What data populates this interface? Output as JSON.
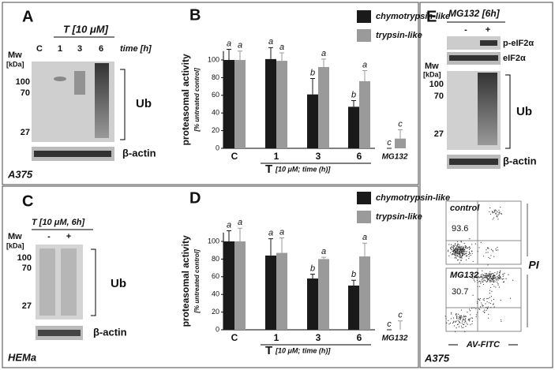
{
  "panels": {
    "A": {
      "letter": "A",
      "treatment": "T [10 μM]",
      "time": "time [h]",
      "mw": "Mw",
      "kda": "[kDa]",
      "lanes": [
        "C",
        "1",
        "3",
        "6"
      ],
      "markers": [
        100,
        70,
        27
      ],
      "ub": "Ub",
      "actin": "β-actin",
      "cell": "A375"
    },
    "C": {
      "letter": "C",
      "treatment": "T [10 μM, 6h]",
      "mw": "Mw",
      "kda": "[kDa]",
      "lanes": [
        "-",
        "+"
      ],
      "markers": [
        100,
        70,
        27
      ],
      "ub": "Ub",
      "actin": "β-actin",
      "cell": "HEMa"
    },
    "E": {
      "letter": "E",
      "treatment": "MG132 [6h]",
      "lanes": [
        "-",
        "+"
      ],
      "peif": "p-eIF2α",
      "eif": "eIF2α",
      "mw": "Mw",
      "kda": "[kDa]",
      "markers": [
        100,
        70,
        27
      ],
      "ub": "Ub",
      "actin": "β-actin",
      "flow": [
        {
          "label": "control",
          "percent": 93.6
        },
        {
          "label": "MG132",
          "percent": 30.7
        }
      ],
      "y_axis": "PI",
      "x_axis": "AV-FITC",
      "cell": "A375"
    }
  },
  "chart_data": [
    {
      "type": "bar",
      "panel": "B",
      "ylabel": "proteasomal activity",
      "ylabel_note": "[% untreated control]",
      "categories": [
        "C",
        "1",
        "3",
        "6",
        "MG132"
      ],
      "xlabel": "T",
      "xlabel_note": "[10 μM; time (h)]",
      "ylim": [
        0,
        110
      ],
      "yticks": [
        0,
        20,
        40,
        60,
        80,
        100
      ],
      "series": [
        {
          "name": "chymotrypsin-like",
          "color": "#1a1a1a",
          "values": [
            100,
            101,
            61,
            47,
            0
          ],
          "errors": [
            12,
            13,
            18,
            7,
            0
          ],
          "significance": [
            "a",
            "a",
            "b",
            "b",
            "c"
          ]
        },
        {
          "name": "trypsin-like",
          "color": "#9a9a9a",
          "values": [
            100,
            99,
            92,
            76,
            11
          ],
          "errors": [
            10,
            9,
            9,
            12,
            10
          ],
          "significance": [
            "a",
            "a",
            "a",
            "a",
            "c"
          ]
        }
      ]
    },
    {
      "type": "bar",
      "panel": "D",
      "ylabel": "proteasomal activity",
      "ylabel_note": "[% untreated control]",
      "categories": [
        "C",
        "1",
        "3",
        "6",
        "MG132"
      ],
      "xlabel": "T",
      "xlabel_note": "[10 μM; time (h)]",
      "ylim": [
        0,
        110
      ],
      "yticks": [
        0,
        20,
        40,
        60,
        80,
        100
      ],
      "series": [
        {
          "name": "chymotrypsin-like",
          "color": "#1a1a1a",
          "values": [
            100,
            84,
            58,
            50,
            0
          ],
          "errors": [
            12,
            19,
            5,
            6,
            0
          ],
          "significance": [
            "a",
            "a",
            "b",
            "b",
            "c"
          ]
        },
        {
          "name": "trypsin-like",
          "color": "#9a9a9a",
          "values": [
            100,
            87,
            80,
            83,
            0
          ],
          "errors": [
            15,
            17,
            2,
            15,
            10
          ],
          "significance": [
            "a",
            "a",
            "a",
            "a",
            "c"
          ]
        }
      ]
    }
  ]
}
